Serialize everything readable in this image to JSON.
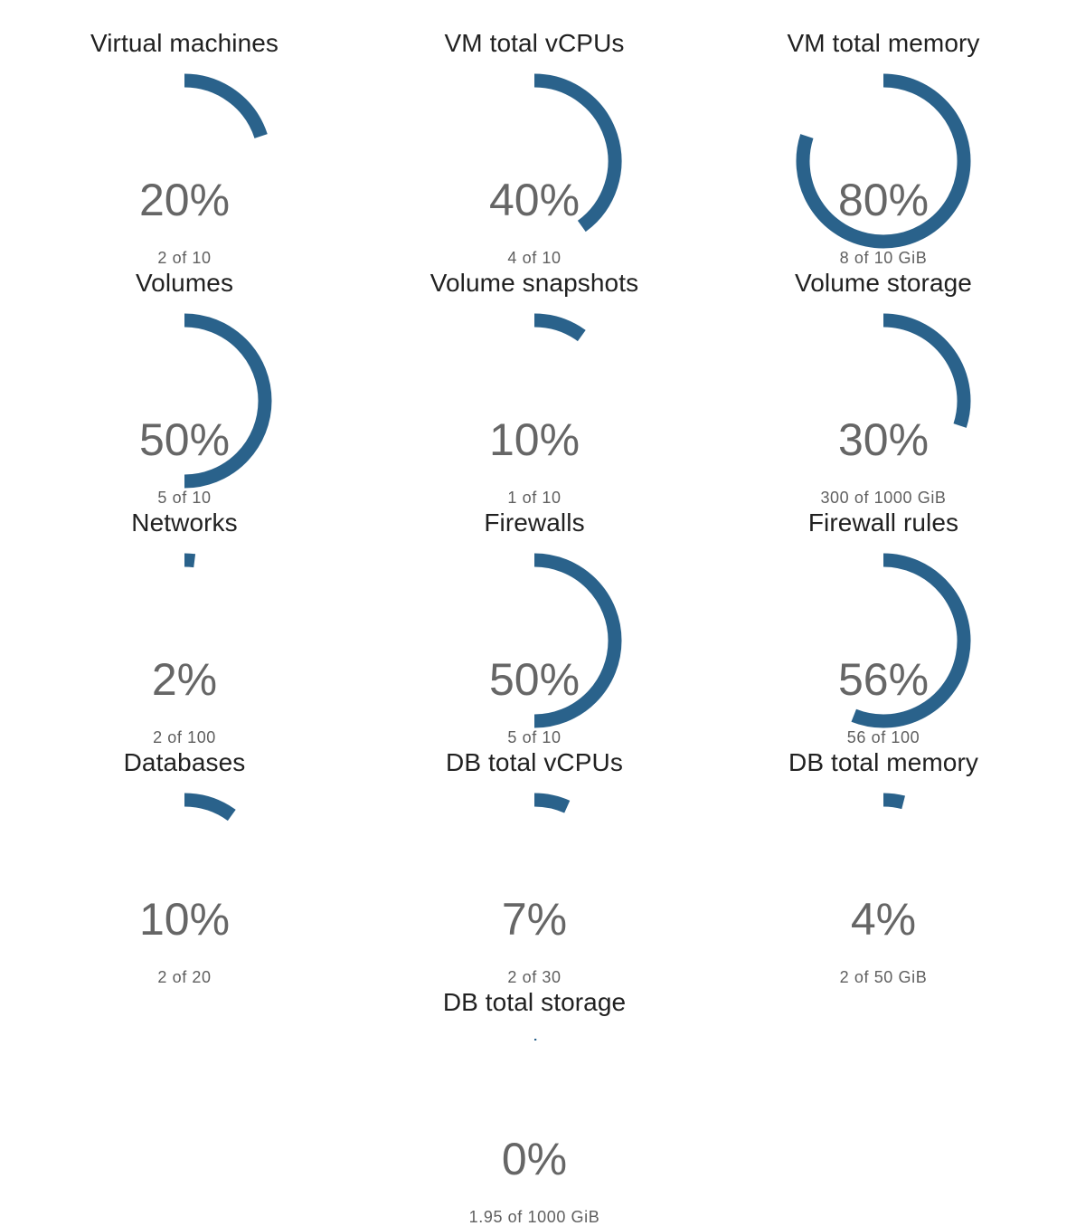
{
  "quotas": [
    {
      "title": "Virtual machines",
      "percent_label": "20%",
      "usage": "2 of 10",
      "fraction": 0.2
    },
    {
      "title": "VM total vCPUs",
      "percent_label": "40%",
      "usage": "4 of 10",
      "fraction": 0.4
    },
    {
      "title": "VM total memory",
      "percent_label": "80%",
      "usage": "8 of 10 GiB",
      "fraction": 0.8
    },
    {
      "title": "Volumes",
      "percent_label": "50%",
      "usage": "5 of 10",
      "fraction": 0.5
    },
    {
      "title": "Volume snapshots",
      "percent_label": "10%",
      "usage": "1 of 10",
      "fraction": 0.1
    },
    {
      "title": "Volume storage",
      "percent_label": "30%",
      "usage": "300 of 1000 GiB",
      "fraction": 0.3
    },
    {
      "title": "Networks",
      "percent_label": "2%",
      "usage": "2 of 100",
      "fraction": 0.02
    },
    {
      "title": "Firewalls",
      "percent_label": "50%",
      "usage": "5 of 10",
      "fraction": 0.5
    },
    {
      "title": "Firewall rules",
      "percent_label": "56%",
      "usage": "56 of 100",
      "fraction": 0.56
    },
    {
      "title": "Databases",
      "percent_label": "10%",
      "usage": "2 of 20",
      "fraction": 0.1
    },
    {
      "title": "DB total vCPUs",
      "percent_label": "7%",
      "usage": "2 of 30",
      "fraction": 0.0667
    },
    {
      "title": "DB total memory",
      "percent_label": "4%",
      "usage": "2 of 50 GiB",
      "fraction": 0.04
    },
    {
      "title": "DB total storage",
      "percent_label": "0%",
      "usage": "1.95 of 1000 GiB",
      "fraction": 0.00195
    }
  ],
  "colors": {
    "gauge_fill": "#2a628b",
    "title_text": "#212121",
    "value_text": "#666666"
  },
  "icons": []
}
